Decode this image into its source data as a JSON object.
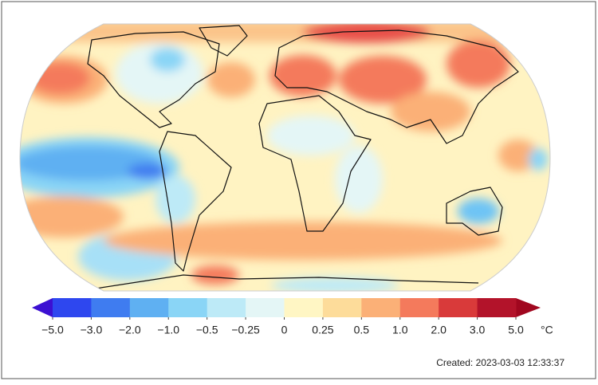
{
  "colorbar": {
    "ticks": [
      {
        "value": -5,
        "label": "−5.0"
      },
      {
        "value": -3,
        "label": "−3.0"
      },
      {
        "value": -2,
        "label": "−2.0"
      },
      {
        "value": -1,
        "label": "−1.0"
      },
      {
        "value": -0.5,
        "label": "−0.5"
      },
      {
        "value": -0.25,
        "label": "−0.25"
      },
      0,
      0.25,
      0.5,
      {
        "value": 1,
        "label": "1.0"
      },
      {
        "value": 2,
        "label": "2.0"
      },
      {
        "value": 3,
        "label": "3.0"
      },
      {
        "value": 5,
        "label": "5.0"
      }
    ],
    "colors": [
      "#2e47ef",
      "#3f7cf0",
      "#5fb0f2",
      "#8ad5f6",
      "#bdeaf7",
      "#e4f6f6",
      "#fff6c4",
      "#fddc9a",
      "#fbb077",
      "#f47a5c",
      "#d93a3a",
      "#b3132a"
    ],
    "under_color": "#3c10d2",
    "over_color": "#a0071f",
    "unit": "°C"
  },
  "footer": {
    "created": "Created: 2023-03-03 12:33:37"
  }
}
